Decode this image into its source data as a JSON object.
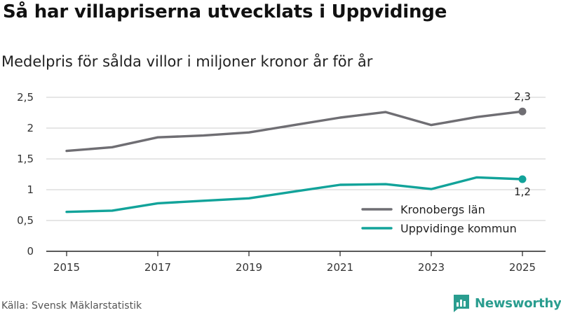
{
  "title": "Så har villapriserna utvecklats i Uppvidinge",
  "subtitle": "Medelpris för sålda villor i miljoner kronor år för år",
  "source": "Källa: Svensk Mäklarstatistik",
  "brand": "Newsworthy",
  "colors": {
    "kronoberg": "#6f6e73",
    "uppvidinge": "#12a39a",
    "brand": "#2a9d8f"
  },
  "chart_data": {
    "type": "line",
    "title": "Så har villapriserna utvecklats i Uppvidinge",
    "subtitle": "Medelpris för sålda villor i miljoner kronor år för år",
    "xlabel": "",
    "ylabel": "",
    "x": [
      2015,
      2016,
      2017,
      2018,
      2019,
      2020,
      2021,
      2022,
      2023,
      2024,
      2025
    ],
    "xticks": [
      2015,
      2017,
      2019,
      2021,
      2023,
      2025
    ],
    "xtick_labels": [
      "2015",
      "2017",
      "2019",
      "2021",
      "2023",
      "2025"
    ],
    "yticks": [
      0,
      0.5,
      1,
      1.5,
      2,
      2.5
    ],
    "ytick_labels": [
      "0",
      "0,5",
      "1",
      "1,5",
      "2",
      "2,5"
    ],
    "ylim": [
      0,
      2.5
    ],
    "xlim": [
      2015,
      2025
    ],
    "grid": true,
    "legend_position": "bottom-right",
    "series": [
      {
        "name": "Kronobergs län",
        "color": "#6f6e73",
        "values": [
          1.63,
          1.69,
          1.85,
          1.88,
          1.93,
          2.05,
          2.17,
          2.26,
          2.05,
          2.18,
          2.27
        ],
        "end_label": "2,3"
      },
      {
        "name": "Uppvidinge kommun",
        "color": "#12a39a",
        "values": [
          0.64,
          0.66,
          0.78,
          0.82,
          0.86,
          0.97,
          1.08,
          1.09,
          1.01,
          1.2,
          1.17
        ],
        "end_label": "1,2"
      }
    ]
  }
}
